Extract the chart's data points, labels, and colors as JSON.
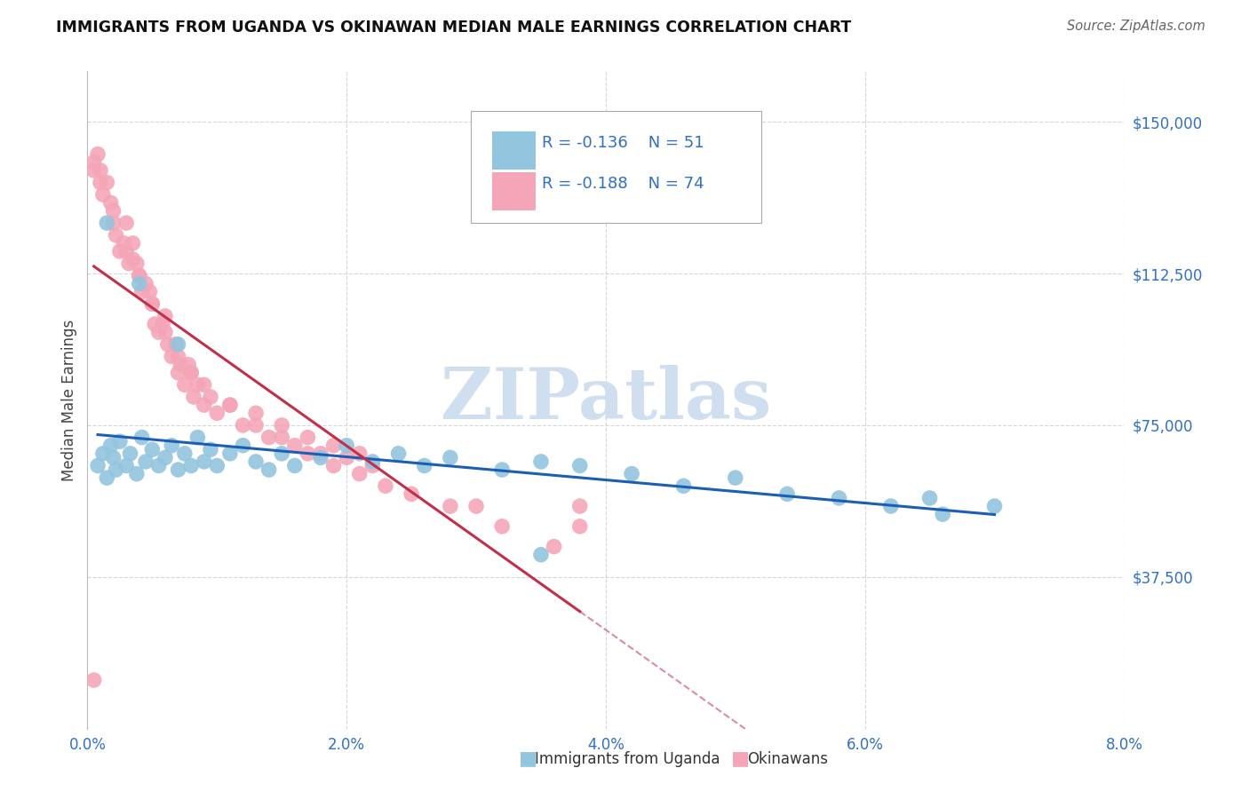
{
  "title": "IMMIGRANTS FROM UGANDA VS OKINAWAN MEDIAN MALE EARNINGS CORRELATION CHART",
  "source": "Source: ZipAtlas.com",
  "ylabel": "Median Male Earnings",
  "xlim": [
    0.0,
    0.08
  ],
  "ylim": [
    0,
    162500
  ],
  "yticks": [
    0,
    37500,
    75000,
    112500,
    150000
  ],
  "ytick_labels": [
    "",
    "$37,500",
    "$75,000",
    "$112,500",
    "$150,000"
  ],
  "xtick_labels": [
    "0.0%",
    "2.0%",
    "4.0%",
    "6.0%",
    "8.0%"
  ],
  "xticks": [
    0.0,
    0.02,
    0.04,
    0.06,
    0.08
  ],
  "color_blue": "#92c5de",
  "color_pink": "#f4a6b8",
  "color_line_blue": "#1a5fb4",
  "color_line_pink": "#c0304a",
  "color_tick": "#3070c0",
  "watermark_color": "#d0dff0",
  "blue_x": [
    0.0008,
    0.0012,
    0.0015,
    0.0018,
    0.002,
    0.0022,
    0.0025,
    0.003,
    0.0033,
    0.0038,
    0.0042,
    0.0045,
    0.005,
    0.0055,
    0.006,
    0.0065,
    0.007,
    0.0075,
    0.008,
    0.0085,
    0.009,
    0.0095,
    0.01,
    0.011,
    0.012,
    0.013,
    0.014,
    0.015,
    0.016,
    0.018,
    0.02,
    0.022,
    0.024,
    0.026,
    0.028,
    0.032,
    0.035,
    0.038,
    0.042,
    0.046,
    0.05,
    0.054,
    0.058,
    0.062,
    0.066,
    0.07,
    0.0015,
    0.004,
    0.007,
    0.035,
    0.065
  ],
  "blue_y": [
    65000,
    68000,
    62000,
    70000,
    67000,
    64000,
    71000,
    65000,
    68000,
    63000,
    72000,
    66000,
    69000,
    65000,
    67000,
    70000,
    64000,
    68000,
    65000,
    72000,
    66000,
    69000,
    65000,
    68000,
    70000,
    66000,
    64000,
    68000,
    65000,
    67000,
    70000,
    66000,
    68000,
    65000,
    67000,
    64000,
    66000,
    65000,
    63000,
    60000,
    62000,
    58000,
    57000,
    55000,
    53000,
    55000,
    125000,
    110000,
    95000,
    43000,
    57000
  ],
  "pink_x": [
    0.0005,
    0.001,
    0.0012,
    0.0015,
    0.002,
    0.0022,
    0.0025,
    0.003,
    0.0032,
    0.0035,
    0.004,
    0.0042,
    0.0045,
    0.005,
    0.0052,
    0.0055,
    0.006,
    0.0062,
    0.0065,
    0.007,
    0.0072,
    0.0075,
    0.008,
    0.0082,
    0.0085,
    0.009,
    0.0095,
    0.01,
    0.011,
    0.012,
    0.013,
    0.014,
    0.015,
    0.016,
    0.017,
    0.018,
    0.019,
    0.02,
    0.021,
    0.022,
    0.0008,
    0.0018,
    0.0028,
    0.0038,
    0.0048,
    0.0058,
    0.0068,
    0.0078,
    0.009,
    0.011,
    0.013,
    0.015,
    0.017,
    0.019,
    0.021,
    0.023,
    0.025,
    0.028,
    0.032,
    0.036,
    0.0005,
    0.001,
    0.002,
    0.003,
    0.004,
    0.005,
    0.006,
    0.007,
    0.008,
    0.038,
    0.038,
    0.0035,
    0.0005,
    0.03
  ],
  "pink_y": [
    140000,
    138000,
    132000,
    135000,
    128000,
    122000,
    118000,
    125000,
    115000,
    120000,
    112000,
    108000,
    110000,
    105000,
    100000,
    98000,
    102000,
    95000,
    92000,
    88000,
    90000,
    85000,
    88000,
    82000,
    85000,
    80000,
    82000,
    78000,
    80000,
    75000,
    78000,
    72000,
    75000,
    70000,
    72000,
    68000,
    70000,
    67000,
    68000,
    65000,
    142000,
    130000,
    120000,
    115000,
    108000,
    100000,
    95000,
    90000,
    85000,
    80000,
    75000,
    72000,
    68000,
    65000,
    63000,
    60000,
    58000,
    55000,
    50000,
    45000,
    138000,
    135000,
    125000,
    118000,
    112000,
    105000,
    98000,
    92000,
    88000,
    55000,
    50000,
    116000,
    12000,
    55000
  ]
}
